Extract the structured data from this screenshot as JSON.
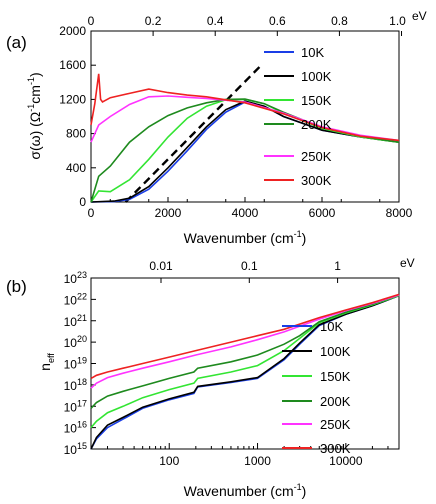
{
  "chart_data": [
    {
      "panel_label": "(a)",
      "type": "line",
      "ylabel": "σ(ω) (Ω",
      "ylabel_sup1": "-1",
      "ylabel_mid": "cm",
      "ylabel_sup2": "-1",
      "ylabel_end": ")",
      "xlabel": "Wavenumber (cm",
      "xlabel_sup": "-1",
      "xlabel_end": ")",
      "top_axis_unit": "eV",
      "xlim": [
        0,
        8000
      ],
      "ylim": [
        0,
        2000
      ],
      "x_ticks": [
        "0",
        "2000",
        "4000",
        "6000",
        "8000"
      ],
      "y_ticks": [
        "0",
        "400",
        "800",
        "1200",
        "1600",
        "2000"
      ],
      "top_ticks": [
        "0",
        "0.2",
        "0.4",
        "0.6",
        "0.8",
        "1.0"
      ],
      "grid": false,
      "legend_position": "right",
      "series": [
        {
          "name": "10K",
          "color": "#1a3ee6",
          "x": [
            0,
            600,
            1000,
            1500,
            2000,
            2500,
            3000,
            3500,
            4000,
            4500,
            5000,
            6000,
            7000,
            8000
          ],
          "y": [
            0,
            5,
            30,
            150,
            360,
            600,
            850,
            1050,
            1170,
            1120,
            1000,
            840,
            760,
            710
          ]
        },
        {
          "name": "100K",
          "color": "#000000",
          "x": [
            0,
            600,
            1000,
            1500,
            2000,
            2500,
            3000,
            3500,
            4000,
            4500,
            5000,
            6000,
            7000,
            8000
          ],
          "y": [
            0,
            10,
            45,
            180,
            400,
            640,
            880,
            1080,
            1180,
            1120,
            1000,
            840,
            760,
            700
          ]
        },
        {
          "name": "150K",
          "color": "#33e533",
          "x": [
            0,
            200,
            500,
            1000,
            1500,
            2000,
            2500,
            3000,
            3500,
            4000,
            4500,
            5000,
            6000,
            7000,
            8000
          ],
          "y": [
            0,
            130,
            120,
            260,
            500,
            760,
            980,
            1120,
            1195,
            1200,
            1150,
            1040,
            860,
            760,
            700
          ]
        },
        {
          "name": "200K",
          "color": "#1e8a1e",
          "x": [
            0,
            200,
            500,
            1000,
            1500,
            2000,
            2500,
            3000,
            3500,
            4000,
            4500,
            5000,
            6000,
            7000,
            8000
          ],
          "y": [
            0,
            300,
            420,
            700,
            880,
            1010,
            1100,
            1160,
            1200,
            1205,
            1150,
            1050,
            870,
            770,
            700
          ]
        },
        {
          "name": "250K",
          "color": "#ff33ff",
          "x": [
            0,
            200,
            500,
            1000,
            1500,
            2000,
            2500,
            3000,
            4000,
            5000,
            6000,
            7000,
            8000
          ],
          "y": [
            700,
            900,
            1000,
            1140,
            1230,
            1240,
            1225,
            1210,
            1170,
            1040,
            880,
            780,
            720
          ]
        },
        {
          "name": "300K",
          "color": "#ee2222",
          "x": [
            0,
            100,
            200,
            250,
            300,
            500,
            1000,
            1500,
            2000,
            2500,
            3000,
            4000,
            5000,
            6000,
            7000,
            8000
          ],
          "y": [
            900,
            1150,
            1500,
            1200,
            1170,
            1220,
            1270,
            1320,
            1280,
            1250,
            1230,
            1160,
            1030,
            870,
            770,
            720
          ]
        }
      ],
      "annotations": {
        "dashed_line": {
          "x": [
            900,
            4400
          ],
          "y": [
            0,
            1590
          ]
        }
      }
    },
    {
      "panel_label": "(b)",
      "type": "line",
      "ylabel": "n",
      "ylabel_sub": "eff",
      "xlabel": "Wavenumber (cm",
      "xlabel_sup": "-1",
      "xlabel_end": ")",
      "top_axis_unit": "eV",
      "x_scale": "log",
      "y_scale": "log",
      "xlim": [
        13,
        40000
      ],
      "ylim": [
        1000000000000000.0,
        1e+23
      ],
      "x_ticks": [
        "100",
        "1000",
        "10000"
      ],
      "y_ticks": [
        {
          "base": "10",
          "exp": "15"
        },
        {
          "base": "10",
          "exp": "16"
        },
        {
          "base": "10",
          "exp": "17"
        },
        {
          "base": "10",
          "exp": "18"
        },
        {
          "base": "10",
          "exp": "19"
        },
        {
          "base": "10",
          "exp": "20"
        },
        {
          "base": "10",
          "exp": "21"
        },
        {
          "base": "10",
          "exp": "22"
        },
        {
          "base": "10",
          "exp": "23"
        }
      ],
      "top_ticks": [
        "0.01",
        "0.1",
        "1"
      ],
      "grid": false,
      "legend_position": "right",
      "series": [
        {
          "name": "10K",
          "color": "#1a3ee6",
          "x": [
            13,
            15,
            20,
            30,
            50,
            100,
            190,
            210,
            500,
            1000,
            2000,
            3000,
            5000,
            10000,
            20000,
            40000
          ],
          "y": [
            1000000000000000.0,
            3000000000000000.0,
            1e+16,
            2.5e+16,
            8e+16,
            2e+17,
            4e+17,
            8e+17,
            1.3e+18,
            2e+18,
            1.5e+19,
            8e+19,
            6e+20,
            2e+21,
            5e+21,
            1.5e+22
          ]
        },
        {
          "name": "100K",
          "color": "#000000",
          "x": [
            13,
            15,
            20,
            30,
            50,
            100,
            190,
            210,
            500,
            1000,
            2000,
            3000,
            5000,
            10000,
            20000,
            40000
          ],
          "y": [
            1000000000000000.0,
            3500000000000000.0,
            1.3e+16,
            3e+16,
            9e+16,
            2.2e+17,
            4.5e+17,
            8.5e+17,
            1.4e+18,
            2.2e+18,
            1.7e+19,
            9e+19,
            6.5e+20,
            2e+21,
            5e+21,
            1.5e+22
          ]
        },
        {
          "name": "150K",
          "color": "#33e533",
          "x": [
            13,
            15,
            20,
            30,
            50,
            100,
            190,
            210,
            500,
            1000,
            2000,
            3000,
            5000,
            10000,
            20000,
            40000
          ],
          "y": [
            1e+16,
            2e+16,
            5e+16,
            1e+17,
            2.5e+17,
            6e+17,
            1.2e+18,
            2e+18,
            4e+18,
            8e+18,
            4e+19,
            1.5e+20,
            8e+20,
            2.3e+21,
            5.5e+21,
            1.5e+22
          ]
        },
        {
          "name": "200K",
          "color": "#1e8a1e",
          "x": [
            13,
            15,
            20,
            30,
            50,
            100,
            190,
            210,
            500,
            1000,
            2000,
            3000,
            5000,
            10000,
            20000,
            40000
          ],
          "y": [
            8e+16,
            1.5e+17,
            3e+17,
            5e+17,
            9e+17,
            2e+18,
            4e+18,
            6e+18,
            1.2e+19,
            2.5e+19,
            8e+19,
            2e+20,
            9e+20,
            2.5e+21,
            6e+21,
            1.6e+22
          ]
        },
        {
          "name": "250K",
          "color": "#ff33ff",
          "x": [
            13,
            15,
            20,
            30,
            50,
            100,
            200,
            500,
            1000,
            2000,
            5000,
            10000,
            20000,
            40000
          ],
          "y": [
            7e+17,
            1.2e+18,
            2.2e+18,
            3.5e+18,
            6e+18,
            1.2e+19,
            2.5e+19,
            6e+19,
            1.3e+20,
            3e+20,
            1.2e+21,
            3e+21,
            6.5e+21,
            1.6e+22
          ]
        },
        {
          "name": "300K",
          "color": "#ee2222",
          "x": [
            13,
            15,
            20,
            30,
            50,
            100,
            200,
            500,
            1000,
            2000,
            5000,
            10000,
            20000,
            40000
          ],
          "y": [
            2e+18,
            2.8e+18,
            4e+18,
            6e+18,
            1e+19,
            2e+19,
            4e+19,
            1e+20,
            2e+20,
            4e+20,
            1.4e+21,
            3.2e+21,
            7e+21,
            1.7e+22
          ]
        }
      ]
    }
  ]
}
